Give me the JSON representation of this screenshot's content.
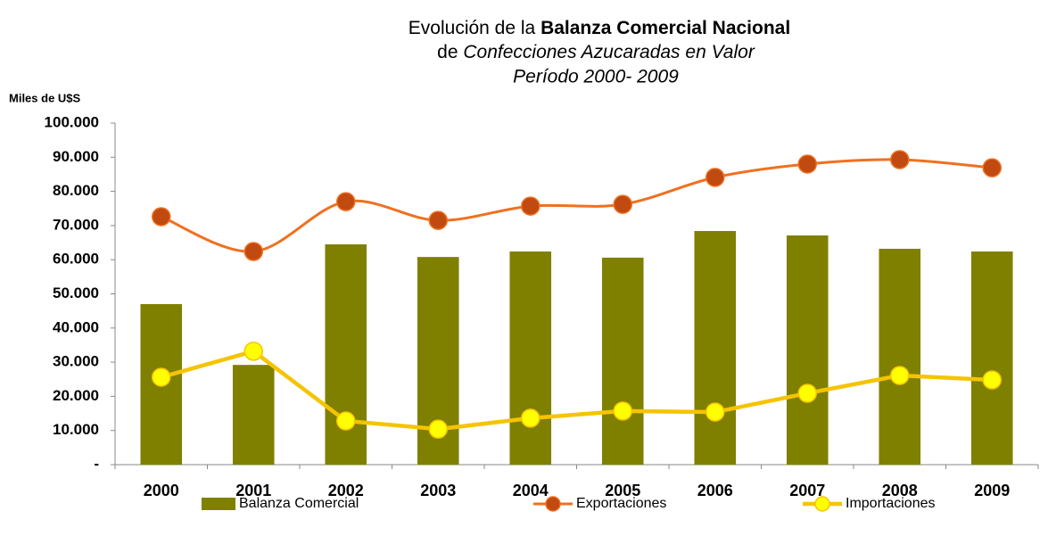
{
  "chart_data": {
    "type": "bar-line",
    "title": [
      "Evolución de la",
      "Balanza Comercial Nacional",
      "de",
      "Confecciones Azucaradas en Valor",
      "Período 2000- 2009"
    ],
    "y_axis_label": "Miles de U$S",
    "categories": [
      "2000",
      "2001",
      "2002",
      "2003",
      "2004",
      "2005",
      "2006",
      "2007",
      "2008",
      "2009"
    ],
    "series": [
      {
        "name": "Balanza Comercial",
        "type": "bar",
        "color": "#808000",
        "values": [
          47000,
          29200,
          64500,
          60800,
          62400,
          60600,
          68400,
          67100,
          63200,
          62400
        ]
      },
      {
        "name": "Exportaciones",
        "type": "line",
        "smooth": true,
        "color": "#f07020",
        "marker_color": "#c04a10",
        "values": [
          72600,
          62400,
          77000,
          71500,
          75700,
          76200,
          84100,
          88000,
          89300,
          86900
        ]
      },
      {
        "name": "Importaciones",
        "type": "line",
        "smooth": false,
        "color": "#f5c400",
        "marker_color": "#ffff00",
        "values": [
          25600,
          33200,
          12800,
          10400,
          13600,
          15700,
          15400,
          20900,
          26100,
          24800
        ]
      }
    ],
    "ylim": [
      0,
      100000
    ],
    "yticks": [
      {
        "value": 0,
        "label": "-"
      },
      {
        "value": 10000,
        "label": "10.000"
      },
      {
        "value": 20000,
        "label": "20.000"
      },
      {
        "value": 30000,
        "label": "30.000"
      },
      {
        "value": 40000,
        "label": "40.000"
      },
      {
        "value": 50000,
        "label": "50.000"
      },
      {
        "value": 60000,
        "label": "60.000"
      },
      {
        "value": 70000,
        "label": "70.000"
      },
      {
        "value": 80000,
        "label": "80.000"
      },
      {
        "value": 90000,
        "label": "90.000"
      },
      {
        "value": 100000,
        "label": "100.000"
      }
    ],
    "legend": "bottom"
  }
}
